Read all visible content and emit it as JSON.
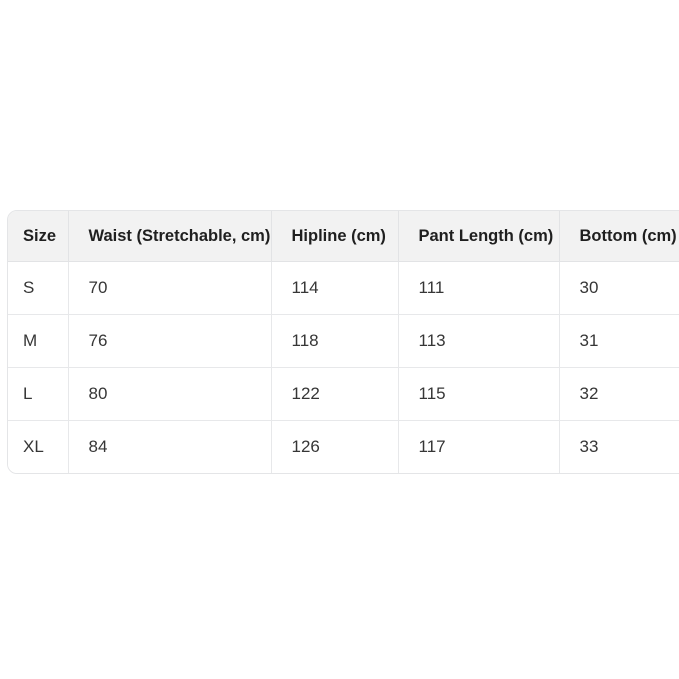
{
  "chart_data": {
    "type": "table",
    "columns": [
      "Size",
      "Waist (Stretchable, cm)",
      "Hipline (cm)",
      "Pant Length (cm)",
      "Bottom (cm)"
    ],
    "rows": [
      [
        "S",
        "70",
        "114",
        "111",
        "30"
      ],
      [
        "M",
        "76",
        "118",
        "113",
        "31"
      ],
      [
        "L",
        "80",
        "122",
        "115",
        "32"
      ],
      [
        "XL",
        "84",
        "126",
        "117",
        "33"
      ]
    ],
    "unit": "cm"
  },
  "ui": {
    "colors": {
      "page_bg": "#ffffff",
      "header_bg": "#f2f2f2",
      "row_bg": "#ffffff",
      "grid_border": "#e4e5e7",
      "header_text": "#1f1f1f",
      "cell_text": "#363636"
    }
  }
}
